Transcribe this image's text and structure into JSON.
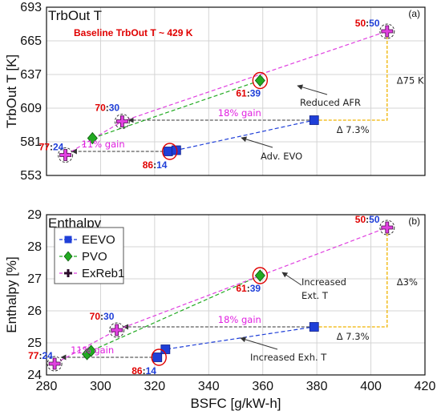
{
  "chart_data": [
    {
      "type": "line",
      "panel_label": "(a)",
      "title": "TrbOut T",
      "ylabel": "TrbOut T [K]",
      "ylim": [
        553,
        693
      ],
      "yticks": [
        553,
        581,
        609,
        637,
        665,
        693
      ],
      "xlim": [
        280,
        420
      ],
      "grid": true,
      "series": [
        {
          "name": "EEVO",
          "color": "#1f3fd8",
          "marker": "square",
          "points": [
            [
              325,
              573
            ],
            [
              328,
              574
            ],
            [
              379,
              599
            ]
          ]
        },
        {
          "name": "PVO",
          "color": "#22aa22",
          "marker": "diamond",
          "points": [
            [
              297,
              584
            ],
            [
              359,
              632
            ]
          ]
        },
        {
          "name": "ExReb1",
          "color": "#e040e0",
          "marker": "plus",
          "points": [
            [
              287,
              570
            ],
            [
              308,
              598
            ],
            [
              406,
              673
            ]
          ]
        }
      ],
      "annotations": {
        "baseline": "Baseline TrbOut T ~ 429 K",
        "ratios": [
          {
            "left": "50",
            "right": "50",
            "x": 406,
            "y": 673
          },
          {
            "left": "61",
            "right": "39",
            "x": 359,
            "y": 632
          },
          {
            "left": "70",
            "right": "30",
            "x": 308,
            "y": 598
          },
          {
            "left": "77",
            "right": "24",
            "x": 287,
            "y": 570
          },
          {
            "left": "86",
            "right": "14",
            "x": 325,
            "y": 573
          }
        ],
        "gain_large": "18% gain",
        "gain_small": "11% gain",
        "arrow_top": "Reduced AFR",
        "arrow_bottom": "Adv. EVO",
        "delta_vertical": "Δ75 K",
        "delta_horizontal": "Δ 7.3%"
      }
    },
    {
      "type": "line",
      "panel_label": "(b)",
      "title": "Enthalpy",
      "ylabel": "Enthalpy [%]",
      "xlabel": "BSFC [g/kW-h]",
      "ylim": [
        24,
        29
      ],
      "yticks": [
        24,
        25,
        26,
        27,
        28,
        29
      ],
      "xlim": [
        280,
        420
      ],
      "xticks": [
        280,
        300,
        320,
        340,
        360,
        380,
        400,
        420
      ],
      "grid": true,
      "legend": {
        "position": "top-left",
        "entries": [
          "EEVO",
          "PVO",
          "ExReb1"
        ]
      },
      "series": [
        {
          "name": "EEVO",
          "color": "#1f3fd8",
          "marker": "square",
          "points": [
            [
              321,
              24.55
            ],
            [
              324,
              24.8
            ],
            [
              379,
              25.5
            ]
          ]
        },
        {
          "name": "PVO",
          "color": "#22aa22",
          "marker": "diamond",
          "points": [
            [
              295,
              24.65
            ],
            [
              296.5,
              24.75
            ],
            [
              359,
              27.1
            ]
          ]
        },
        {
          "name": "ExReb1",
          "color": "#e040e0",
          "marker": "plus",
          "points": [
            [
              283,
              24.35
            ],
            [
              306,
              25.4
            ],
            [
              406,
              28.6
            ]
          ]
        }
      ],
      "annotations": {
        "ratios": [
          {
            "left": "50",
            "right": "50",
            "x": 406,
            "y": 28.6
          },
          {
            "left": "61",
            "right": "39",
            "x": 359,
            "y": 27.1
          },
          {
            "left": "70",
            "right": "30",
            "x": 306,
            "y": 25.4
          },
          {
            "left": "77",
            "right": "24",
            "x": 283,
            "y": 24.35
          },
          {
            "left": "86",
            "right": "14",
            "x": 321,
            "y": 24.55
          }
        ],
        "gain_large": "18% gain",
        "gain_small": "11% gain",
        "arrow_top": "Increased\nExt. T",
        "arrow_bottom": "Increased Exh. T",
        "delta_vertical": "Δ3%",
        "delta_horizontal": "Δ 7.3%"
      }
    }
  ],
  "colors": {
    "ratio_left": "#e00000",
    "ratio_right": "#1f3fd8",
    "delta_line": "#f0b400",
    "circle_red": "#e00000",
    "circle_black": "#333333"
  }
}
